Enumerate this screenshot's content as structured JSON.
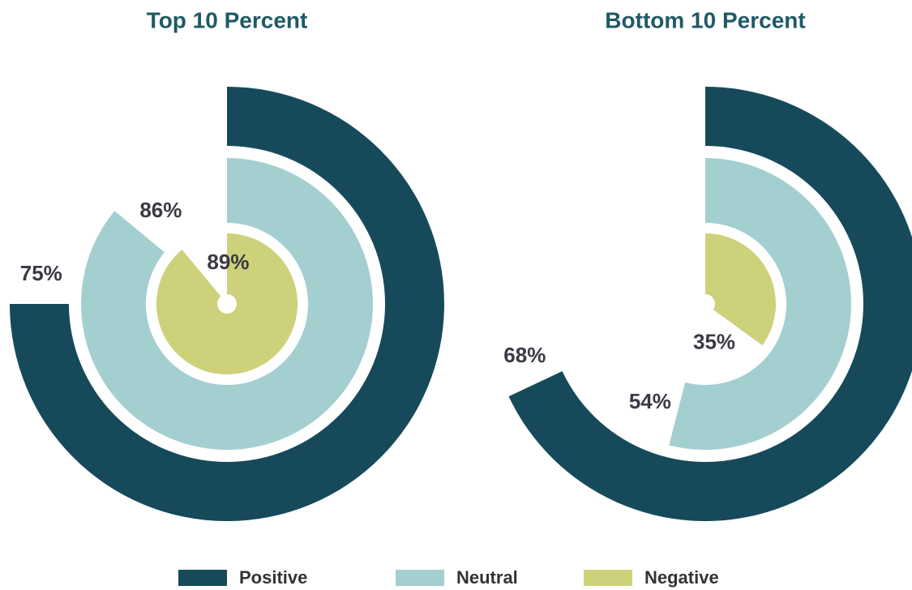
{
  "chart_data": [
    {
      "type": "radial_bar",
      "title": "Top 10 Percent",
      "categories": [
        "Positive",
        "Neutral",
        "Negative"
      ],
      "values": [
        75,
        86,
        89
      ],
      "value_labels": [
        "75%",
        "86%",
        "89%"
      ],
      "colors": [
        "#164a5a",
        "#a4cfd0",
        "#cdd17a"
      ],
      "ylim": [
        0,
        100
      ]
    },
    {
      "type": "radial_bar",
      "title": "Bottom 10 Percent",
      "categories": [
        "Positive",
        "Neutral",
        "Negative"
      ],
      "values": [
        68,
        54,
        35
      ],
      "value_labels": [
        "68%",
        "54%",
        "35%"
      ],
      "colors": [
        "#164a5a",
        "#a4cfd0",
        "#cdd17a"
      ],
      "ylim": [
        0,
        100
      ]
    }
  ]
}
